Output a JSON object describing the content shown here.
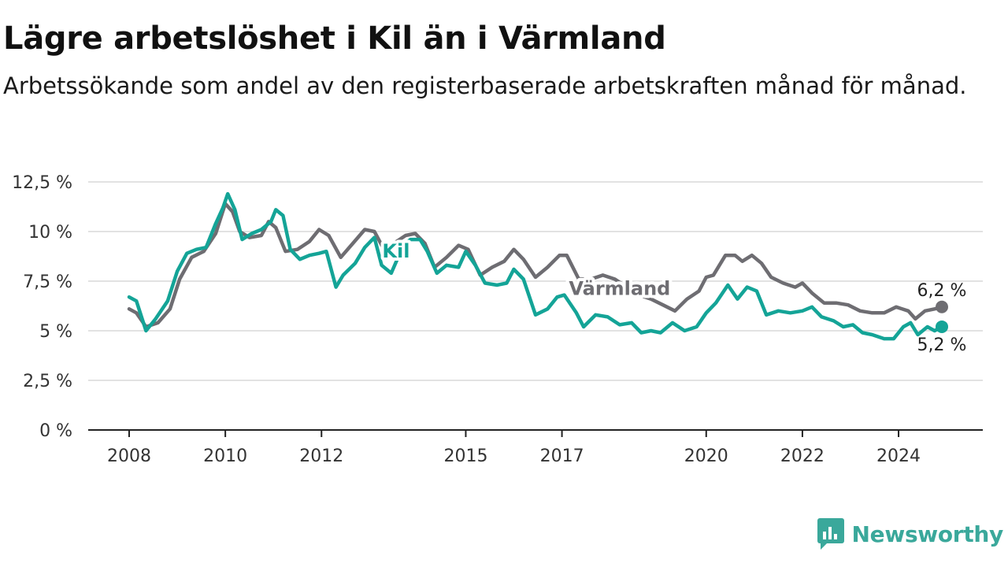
{
  "header": {
    "title": "Lägre arbetslöshet i Kil än i Värmland",
    "subtitle": "Arbetssökande som andel av den registerbaserade arbetskraften månad för månad."
  },
  "brand": {
    "name": "Newsworthy",
    "icon": "newsworthy-logo-icon",
    "color": "#3aa89b"
  },
  "chart_data": {
    "type": "line",
    "title": "Lägre arbetslöshet i Kil än i Värmland",
    "subtitle": "Arbetssökande som andel av den registerbaserade arbetskraften månad för månad.",
    "xlim": [
      2008,
      2024.9
    ],
    "ylim": [
      0,
      12.5
    ],
    "y_ticks": [
      {
        "value": 0,
        "label": "0 %"
      },
      {
        "value": 2.5,
        "label": "2,5 %"
      },
      {
        "value": 5,
        "label": "5 %"
      },
      {
        "value": 7.5,
        "label": "7,5 %"
      },
      {
        "value": 10,
        "label": "10 %"
      },
      {
        "value": 12.5,
        "label": "12,5 %"
      }
    ],
    "x_ticks": [
      {
        "value": 2008,
        "label": "2008"
      },
      {
        "value": 2010,
        "label": "2010"
      },
      {
        "value": 2012,
        "label": "2012"
      },
      {
        "value": 2015,
        "label": "2015"
      },
      {
        "value": 2017,
        "label": "2017"
      },
      {
        "value": 2020,
        "label": "2020"
      },
      {
        "value": 2022,
        "label": "2022"
      },
      {
        "value": 2024,
        "label": "2024"
      }
    ],
    "grid": true,
    "series": [
      {
        "name": "Värmland",
        "color": "#6e6d72",
        "label_at": {
          "x": 2018.2,
          "y": 6.8
        },
        "end_label": "6,2 %",
        "points": [
          [
            2008.0,
            6.1
          ],
          [
            2008.15,
            5.9
          ],
          [
            2008.35,
            5.2
          ],
          [
            2008.6,
            5.4
          ],
          [
            2008.85,
            6.1
          ],
          [
            2009.05,
            7.6
          ],
          [
            2009.3,
            8.7
          ],
          [
            2009.55,
            9.0
          ],
          [
            2009.8,
            9.9
          ],
          [
            2010.0,
            11.4
          ],
          [
            2010.15,
            11.0
          ],
          [
            2010.3,
            10.0
          ],
          [
            2010.5,
            9.7
          ],
          [
            2010.75,
            9.8
          ],
          [
            2010.9,
            10.5
          ],
          [
            2011.05,
            10.2
          ],
          [
            2011.25,
            9.0
          ],
          [
            2011.5,
            9.1
          ],
          [
            2011.75,
            9.5
          ],
          [
            2011.95,
            10.1
          ],
          [
            2012.15,
            9.8
          ],
          [
            2012.4,
            8.7
          ],
          [
            2012.65,
            9.4
          ],
          [
            2012.9,
            10.1
          ],
          [
            2013.1,
            10.0
          ],
          [
            2013.3,
            9.1
          ],
          [
            2013.5,
            9.4
          ],
          [
            2013.75,
            9.8
          ],
          [
            2013.95,
            9.9
          ],
          [
            2014.15,
            9.4
          ],
          [
            2014.35,
            8.2
          ],
          [
            2014.6,
            8.7
          ],
          [
            2014.85,
            9.3
          ],
          [
            2015.05,
            9.1
          ],
          [
            2015.3,
            7.8
          ],
          [
            2015.55,
            8.2
          ],
          [
            2015.8,
            8.5
          ],
          [
            2016.0,
            9.1
          ],
          [
            2016.2,
            8.6
          ],
          [
            2016.45,
            7.7
          ],
          [
            2016.7,
            8.2
          ],
          [
            2016.95,
            8.8
          ],
          [
            2017.1,
            8.8
          ],
          [
            2017.35,
            7.6
          ],
          [
            2017.6,
            7.6
          ],
          [
            2017.85,
            7.8
          ],
          [
            2018.1,
            7.6
          ],
          [
            2018.35,
            7.2
          ],
          [
            2018.6,
            6.8
          ],
          [
            2018.85,
            6.6
          ],
          [
            2019.1,
            6.3
          ],
          [
            2019.35,
            6.0
          ],
          [
            2019.6,
            6.6
          ],
          [
            2019.85,
            7.0
          ],
          [
            2020.0,
            7.7
          ],
          [
            2020.15,
            7.8
          ],
          [
            2020.4,
            8.8
          ],
          [
            2020.6,
            8.8
          ],
          [
            2020.75,
            8.5
          ],
          [
            2020.95,
            8.8
          ],
          [
            2021.15,
            8.4
          ],
          [
            2021.35,
            7.7
          ],
          [
            2021.6,
            7.4
          ],
          [
            2021.85,
            7.2
          ],
          [
            2022.0,
            7.4
          ],
          [
            2022.2,
            6.9
          ],
          [
            2022.45,
            6.4
          ],
          [
            2022.7,
            6.4
          ],
          [
            2022.95,
            6.3
          ],
          [
            2023.2,
            6.0
          ],
          [
            2023.45,
            5.9
          ],
          [
            2023.7,
            5.9
          ],
          [
            2023.95,
            6.2
          ],
          [
            2024.2,
            6.0
          ],
          [
            2024.35,
            5.6
          ],
          [
            2024.55,
            6.0
          ],
          [
            2024.75,
            6.1
          ],
          [
            2024.9,
            6.2
          ]
        ]
      },
      {
        "name": "Kil",
        "color": "#14a497",
        "label_at": {
          "x": 2013.55,
          "y": 8.7
        },
        "end_label": "5,2 %",
        "points": [
          [
            2008.0,
            6.7
          ],
          [
            2008.15,
            6.5
          ],
          [
            2008.35,
            5.0
          ],
          [
            2008.55,
            5.6
          ],
          [
            2008.8,
            6.5
          ],
          [
            2009.0,
            8.0
          ],
          [
            2009.2,
            8.9
          ],
          [
            2009.4,
            9.1
          ],
          [
            2009.6,
            9.2
          ],
          [
            2009.8,
            10.4
          ],
          [
            2009.95,
            11.2
          ],
          [
            2010.05,
            11.9
          ],
          [
            2010.2,
            11.1
          ],
          [
            2010.35,
            9.6
          ],
          [
            2010.55,
            9.9
          ],
          [
            2010.75,
            10.1
          ],
          [
            2010.95,
            10.5
          ],
          [
            2011.05,
            11.1
          ],
          [
            2011.2,
            10.8
          ],
          [
            2011.35,
            9.1
          ],
          [
            2011.55,
            8.6
          ],
          [
            2011.75,
            8.8
          ],
          [
            2011.95,
            8.9
          ],
          [
            2012.1,
            9.0
          ],
          [
            2012.3,
            7.2
          ],
          [
            2012.45,
            7.8
          ],
          [
            2012.7,
            8.4
          ],
          [
            2012.9,
            9.2
          ],
          [
            2013.1,
            9.7
          ],
          [
            2013.25,
            8.3
          ],
          [
            2013.45,
            7.9
          ],
          [
            2013.7,
            9.3
          ],
          [
            2013.85,
            9.6
          ],
          [
            2014.05,
            9.6
          ],
          [
            2014.2,
            9.0
          ],
          [
            2014.4,
            7.9
          ],
          [
            2014.6,
            8.3
          ],
          [
            2014.85,
            8.2
          ],
          [
            2015.0,
            9.0
          ],
          [
            2015.2,
            8.3
          ],
          [
            2015.4,
            7.4
          ],
          [
            2015.65,
            7.3
          ],
          [
            2015.85,
            7.4
          ],
          [
            2016.0,
            8.1
          ],
          [
            2016.2,
            7.6
          ],
          [
            2016.45,
            5.8
          ],
          [
            2016.7,
            6.1
          ],
          [
            2016.9,
            6.7
          ],
          [
            2017.05,
            6.8
          ],
          [
            2017.3,
            5.9
          ],
          [
            2017.45,
            5.2
          ],
          [
            2017.7,
            5.8
          ],
          [
            2017.95,
            5.7
          ],
          [
            2018.2,
            5.3
          ],
          [
            2018.45,
            5.4
          ],
          [
            2018.65,
            4.9
          ],
          [
            2018.85,
            5.0
          ],
          [
            2019.05,
            4.9
          ],
          [
            2019.3,
            5.4
          ],
          [
            2019.55,
            5.0
          ],
          [
            2019.8,
            5.2
          ],
          [
            2020.0,
            5.9
          ],
          [
            2020.2,
            6.4
          ],
          [
            2020.45,
            7.3
          ],
          [
            2020.65,
            6.6
          ],
          [
            2020.85,
            7.2
          ],
          [
            2021.05,
            7.0
          ],
          [
            2021.25,
            5.8
          ],
          [
            2021.5,
            6.0
          ],
          [
            2021.75,
            5.9
          ],
          [
            2022.0,
            6.0
          ],
          [
            2022.2,
            6.2
          ],
          [
            2022.4,
            5.7
          ],
          [
            2022.65,
            5.5
          ],
          [
            2022.85,
            5.2
          ],
          [
            2023.05,
            5.3
          ],
          [
            2023.25,
            4.9
          ],
          [
            2023.45,
            4.8
          ],
          [
            2023.7,
            4.6
          ],
          [
            2023.9,
            4.6
          ],
          [
            2024.1,
            5.2
          ],
          [
            2024.25,
            5.4
          ],
          [
            2024.4,
            4.8
          ],
          [
            2024.6,
            5.2
          ],
          [
            2024.75,
            5.0
          ],
          [
            2024.9,
            5.2
          ]
        ]
      }
    ]
  }
}
